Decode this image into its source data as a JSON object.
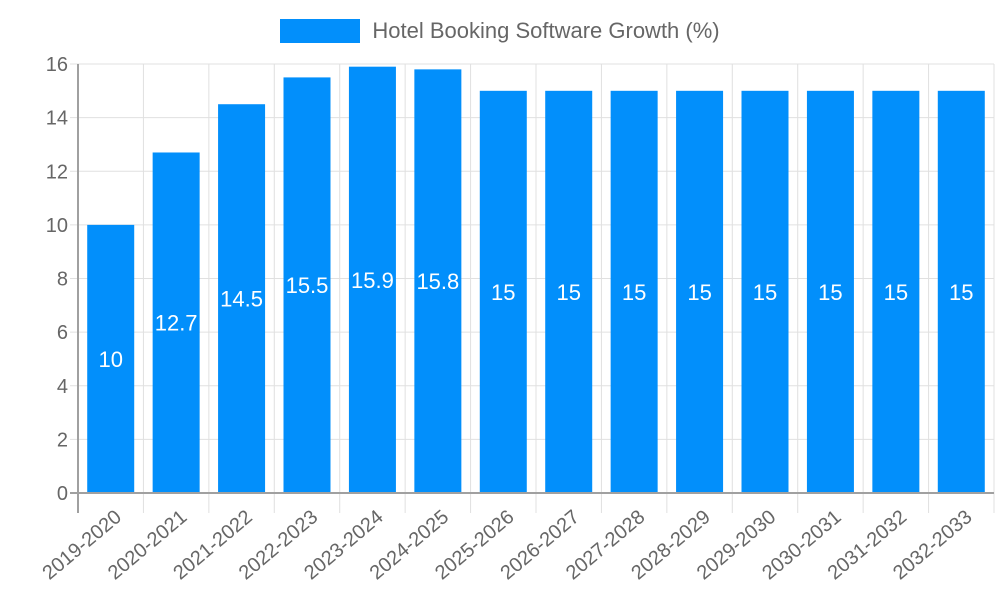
{
  "chart_data": {
    "type": "bar",
    "title": "",
    "legend": [
      {
        "label": "Hotel Booking Software Growth (%)",
        "color": "#028ffb"
      }
    ],
    "legend_position": "top",
    "xlabel": "",
    "ylabel": "",
    "ylim": [
      0,
      16
    ],
    "yticks": [
      0,
      2,
      4,
      6,
      8,
      10,
      12,
      14,
      16
    ],
    "grid": true,
    "categories": [
      "2019-2020",
      "2020-2021",
      "2021-2022",
      "2022-2023",
      "2023-2024",
      "2024-2025",
      "2025-2026",
      "2026-2027",
      "2027-2028",
      "2028-2029",
      "2029-2030",
      "2030-2031",
      "2031-2032",
      "2032-2033"
    ],
    "series": [
      {
        "name": "Hotel Booking Software Growth (%)",
        "values": [
          10,
          12.7,
          14.5,
          15.5,
          15.9,
          15.8,
          15,
          15,
          15,
          15,
          15,
          15,
          15,
          15
        ]
      }
    ],
    "data_labels": [
      "10",
      "12.7",
      "14.5",
      "15.5",
      "15.9",
      "15.8",
      "15",
      "15",
      "15",
      "15",
      "15",
      "15",
      "15",
      "15"
    ]
  },
  "legend": {
    "label": "Hotel Booking Software Growth (%)",
    "color": "#028ffb"
  },
  "colors": {
    "bar": "#028ffb",
    "grid": "#e0e0e0",
    "axis": "#a0a0a0",
    "text": "#666666"
  }
}
